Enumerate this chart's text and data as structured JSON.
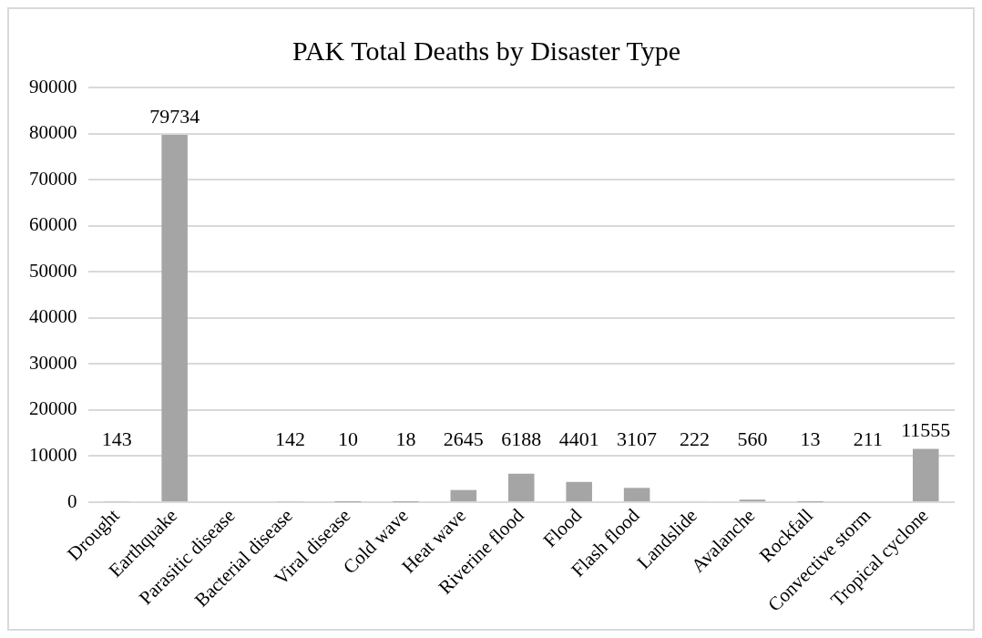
{
  "chart_data": {
    "type": "bar",
    "title": "PAK Total Deaths by Disaster Type",
    "categories": [
      "Drought",
      "Earthquake",
      "Parasitic disease",
      "Bacterial disease",
      "Viral disease",
      "Cold wave",
      "Heat wave",
      "Riverine flood",
      "Flood",
      "Flash flood",
      "Landslide",
      "Avalanche",
      "Rockfall",
      "Convective storm",
      "Tropical cyclone"
    ],
    "values": [
      143,
      79734,
      null,
      142,
      10,
      18,
      2645,
      6188,
      4401,
      3107,
      222,
      560,
      13,
      211,
      11555
    ],
    "value_labels": [
      "143",
      "79734",
      null,
      "142",
      "10",
      "18",
      "2645",
      "6188",
      "4401",
      "3107",
      "222",
      "560",
      "13",
      "211",
      "11555"
    ],
    "color": "#a5a5a5",
    "ylim": [
      0,
      90000
    ],
    "yticks": [
      0,
      10000,
      20000,
      30000,
      40000,
      50000,
      60000,
      70000,
      80000,
      90000
    ],
    "grid": "y",
    "legend": false
  }
}
